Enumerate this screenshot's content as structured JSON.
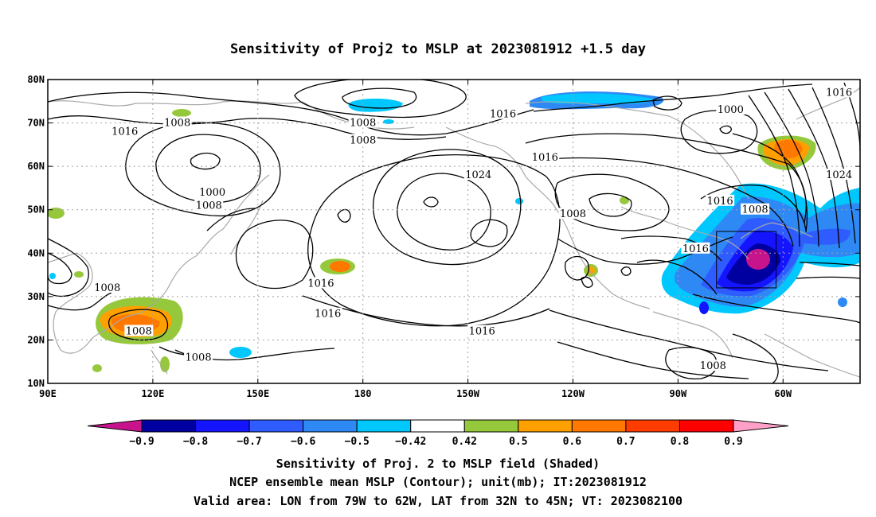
{
  "chart_data": {
    "type": "heatmap",
    "title": "Sensitivity of Proj2 to MSLP at 2023081912 +1.5 day",
    "x_ticks": [
      "90E",
      "120E",
      "150E",
      "180",
      "150W",
      "120W",
      "90W",
      "60W"
    ],
    "y_ticks": [
      "10N",
      "20N",
      "30N",
      "40N",
      "50N",
      "60N",
      "70N",
      "80N"
    ],
    "lon_range": [
      90,
      322
    ],
    "lat_range": [
      10,
      80
    ],
    "grid": "dotted",
    "contour_labels": [
      {
        "text": "1016",
        "lon": 112,
        "lat": 68
      },
      {
        "text": "1008",
        "lon": 127,
        "lat": 70
      },
      {
        "text": "1008",
        "lon": 180,
        "lat": 70
      },
      {
        "text": "1008",
        "lon": 180,
        "lat": 66
      },
      {
        "text": "1016",
        "lon": 220,
        "lat": 72
      },
      {
        "text": "1000",
        "lon": 285,
        "lat": 73
      },
      {
        "text": "1016",
        "lon": 316,
        "lat": 77
      },
      {
        "text": "1000",
        "lon": 137,
        "lat": 54
      },
      {
        "text": "1008",
        "lon": 136,
        "lat": 51
      },
      {
        "text": "1024",
        "lon": 213,
        "lat": 58
      },
      {
        "text": "1016",
        "lon": 232,
        "lat": 62
      },
      {
        "text": "1016",
        "lon": 282,
        "lat": 52
      },
      {
        "text": "1024",
        "lon": 316,
        "lat": 58
      },
      {
        "text": "1008",
        "lon": 240,
        "lat": 49
      },
      {
        "text": "1008",
        "lon": 292,
        "lat": 50
      },
      {
        "text": "1016",
        "lon": 275,
        "lat": 41
      },
      {
        "text": "1016",
        "lon": 168,
        "lat": 33
      },
      {
        "text": "1008",
        "lon": 107,
        "lat": 32
      },
      {
        "text": "1016",
        "lon": 170,
        "lat": 26
      },
      {
        "text": "1008",
        "lon": 116,
        "lat": 22
      },
      {
        "text": "1016",
        "lon": 214,
        "lat": 22
      },
      {
        "text": "1008",
        "lon": 133,
        "lat": 16
      },
      {
        "text": "1008",
        "lon": 280,
        "lat": 14
      }
    ],
    "shaded_regions": [
      {
        "lon": 117,
        "lat": 22,
        "value": 0.7
      },
      {
        "lon": 174,
        "lat": 36,
        "value": 0.7
      },
      {
        "lon": 298,
        "lat": 63,
        "value": 0.7
      },
      {
        "lon": 293,
        "lat": 36,
        "value": -0.9
      },
      {
        "lon": 295,
        "lat": 37,
        "value": -0.7
      },
      {
        "lon": 312,
        "lat": 42,
        "value": -0.6
      },
      {
        "lon": 181,
        "lat": 76,
        "value": -0.5
      },
      {
        "lon": 226,
        "lat": 76,
        "value": -0.5
      },
      {
        "lon": 242,
        "lat": 35,
        "value": 0.6
      }
    ],
    "valid_box": {
      "lon": [
        281,
        298
      ],
      "lat": [
        32,
        45
      ]
    },
    "colorbar": {
      "labels": [
        "−0.9",
        "−0.8",
        "−0.7",
        "−0.6",
        "−0.5",
        "−0.42",
        "0.42",
        "0.5",
        "0.6",
        "0.7",
        "0.8",
        "0.9"
      ],
      "colors": [
        "#0000a0",
        "#1414ff",
        "#2e5cff",
        "#2f89f5",
        "#00c8ff",
        "#ffffff",
        "#96c83c",
        "#ffa000",
        "#ff7800",
        "#ff3c00",
        "#ff0000"
      ],
      "low_end_color": "#c8148c",
      "high_end_color": "#ffa0c8"
    },
    "captions": [
      "Sensitivity of Proj. 2 to MSLP field (Shaded)",
      "NCEP ensemble mean MSLP (Contour); unit(mb); IT:2023081912",
      "Valid area: LON from 79W to 62W, LAT from 32N to 45N; VT: 2023082100"
    ]
  }
}
